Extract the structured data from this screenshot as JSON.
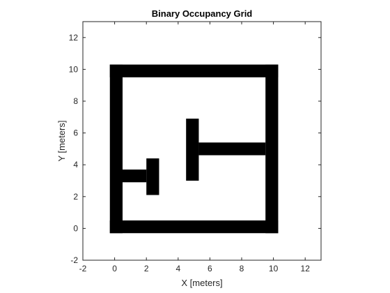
{
  "chart_data": {
    "type": "heatmap",
    "title": "Binary Occupancy Grid",
    "xlabel": "X [meters]",
    "ylabel": "Y [meters]",
    "xlim": [
      -2,
      13
    ],
    "ylim": [
      -2,
      13
    ],
    "xticks": [
      -2,
      0,
      2,
      4,
      6,
      8,
      10,
      12
    ],
    "yticks": [
      -2,
      0,
      2,
      4,
      6,
      8,
      10,
      12
    ],
    "grid": false,
    "colors": {
      "occupied": "#000000",
      "free": "#ffffff",
      "axis": "#262626"
    },
    "occupied_regions": [
      {
        "name": "bottom-wall",
        "x": [
          -0.3,
          10.3
        ],
        "y": [
          -0.3,
          0.5
        ]
      },
      {
        "name": "top-wall",
        "x": [
          -0.3,
          10.3
        ],
        "y": [
          9.5,
          10.3
        ]
      },
      {
        "name": "left-wall",
        "x": [
          -0.3,
          0.5
        ],
        "y": [
          -0.3,
          10.3
        ]
      },
      {
        "name": "right-wall",
        "x": [
          9.5,
          10.3
        ],
        "y": [
          -0.3,
          10.3
        ]
      },
      {
        "name": "left-stub",
        "x": [
          0.5,
          2.0
        ],
        "y": [
          2.9,
          3.7
        ]
      },
      {
        "name": "left-post",
        "x": [
          2.0,
          2.8
        ],
        "y": [
          2.1,
          4.4
        ]
      },
      {
        "name": "center-post",
        "x": [
          4.5,
          5.3
        ],
        "y": [
          3.0,
          6.9
        ]
      },
      {
        "name": "right-arm",
        "x": [
          5.3,
          9.5
        ],
        "y": [
          4.6,
          5.4
        ]
      }
    ]
  }
}
